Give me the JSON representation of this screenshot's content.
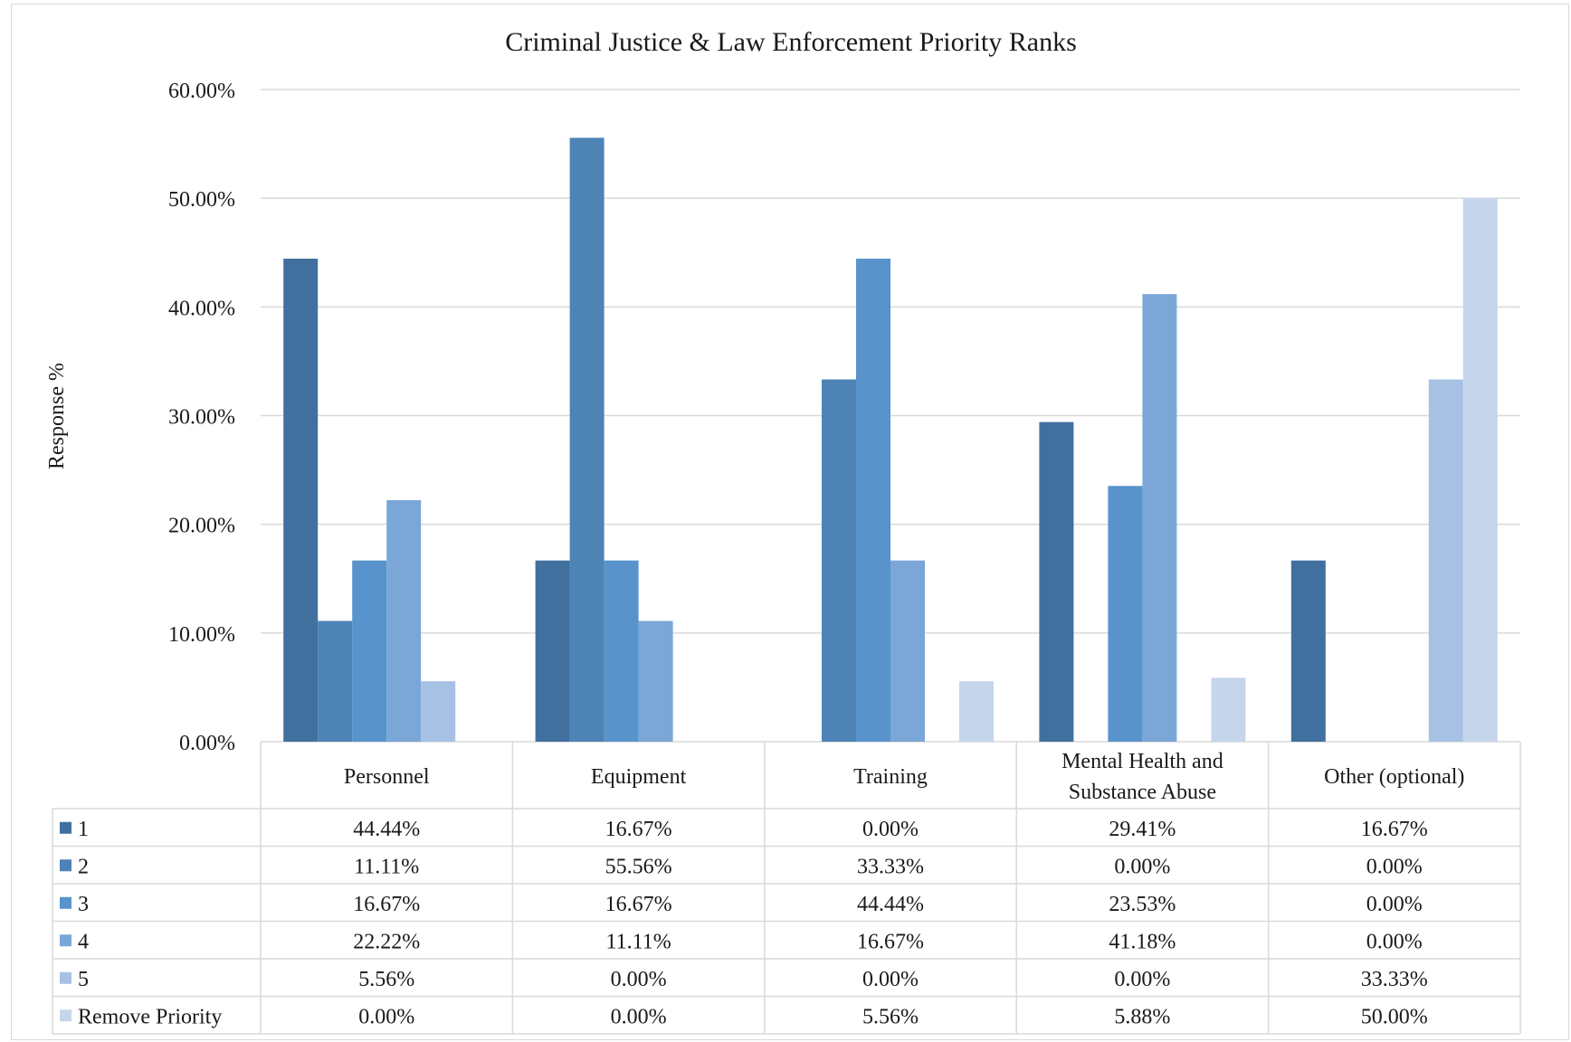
{
  "chart_data": {
    "type": "bar",
    "title": "Criminal Justice & Law Enforcement Priority Ranks",
    "xlabel": "",
    "ylabel": "Response %",
    "ylim": [
      0,
      60
    ],
    "yticks": [
      "0.00%",
      "10.00%",
      "20.00%",
      "30.00%",
      "40.00%",
      "50.00%",
      "60.00%"
    ],
    "grid": true,
    "legend": "data-table",
    "categories": [
      [
        "Personnel"
      ],
      [
        "Equipment"
      ],
      [
        "Training"
      ],
      [
        "Mental Health and",
        "Substance Abuse"
      ],
      [
        "Other (optional)"
      ]
    ],
    "series": [
      {
        "name": "1",
        "color": "#41709f",
        "values": [
          44.44,
          16.67,
          0.0,
          29.41,
          16.67
        ],
        "labels": [
          "44.44%",
          "16.67%",
          "0.00%",
          "29.41%",
          "16.67%"
        ]
      },
      {
        "name": "2",
        "color": "#4d83b5",
        "values": [
          11.11,
          55.56,
          33.33,
          0.0,
          0.0
        ],
        "labels": [
          "11.11%",
          "55.56%",
          "33.33%",
          "0.00%",
          "0.00%"
        ]
      },
      {
        "name": "3",
        "color": "#5893cc",
        "values": [
          16.67,
          16.67,
          44.44,
          23.53,
          0.0
        ],
        "labels": [
          "16.67%",
          "16.67%",
          "44.44%",
          "23.53%",
          "0.00%"
        ]
      },
      {
        "name": "4",
        "color": "#7aa7d8",
        "values": [
          22.22,
          11.11,
          16.67,
          41.18,
          0.0
        ],
        "labels": [
          "22.22%",
          "11.11%",
          "16.67%",
          "41.18%",
          "0.00%"
        ]
      },
      {
        "name": "5",
        "color": "#a6c1e4",
        "values": [
          5.56,
          0.0,
          0.0,
          0.0,
          33.33
        ],
        "labels": [
          "5.56%",
          "0.00%",
          "0.00%",
          "0.00%",
          "33.33%"
        ]
      },
      {
        "name": "Remove Priority",
        "color": "#c5d5ec",
        "values": [
          0.0,
          0.0,
          5.56,
          5.88,
          50.0
        ],
        "labels": [
          "0.00%",
          "0.00%",
          "5.56%",
          "5.88%",
          "50.00%"
        ]
      }
    ]
  }
}
